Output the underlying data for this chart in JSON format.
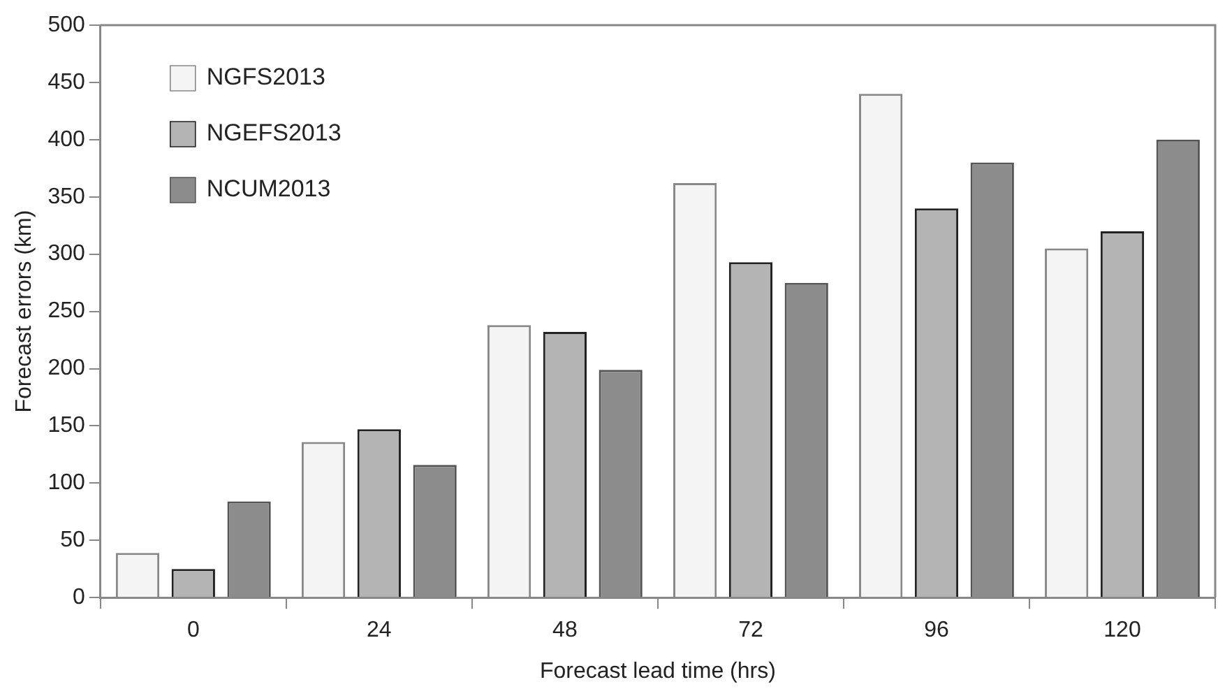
{
  "chart_data": {
    "type": "bar",
    "xlabel": "Forecast lead time (hrs)",
    "ylabel": "Forecast errors (km)",
    "categories": [
      "0",
      "24",
      "48",
      "72",
      "96",
      "120"
    ],
    "series": [
      {
        "name": "NGFS2013",
        "color": "#f4f4f4",
        "values": [
          39,
          136,
          238,
          362,
          440,
          305
        ]
      },
      {
        "name": "NGEFS2013",
        "color": "#b4b4b4",
        "values": [
          25,
          147,
          232,
          293,
          340,
          320
        ]
      },
      {
        "name": "NCUM2013",
        "color": "#8c8c8c",
        "values": [
          84,
          116,
          199,
          275,
          380,
          400
        ]
      }
    ],
    "ylim": [
      0,
      500
    ],
    "yticks": [
      0,
      50,
      100,
      150,
      200,
      250,
      300,
      350,
      400,
      450,
      500
    ],
    "grid": false,
    "legend": "top left"
  }
}
